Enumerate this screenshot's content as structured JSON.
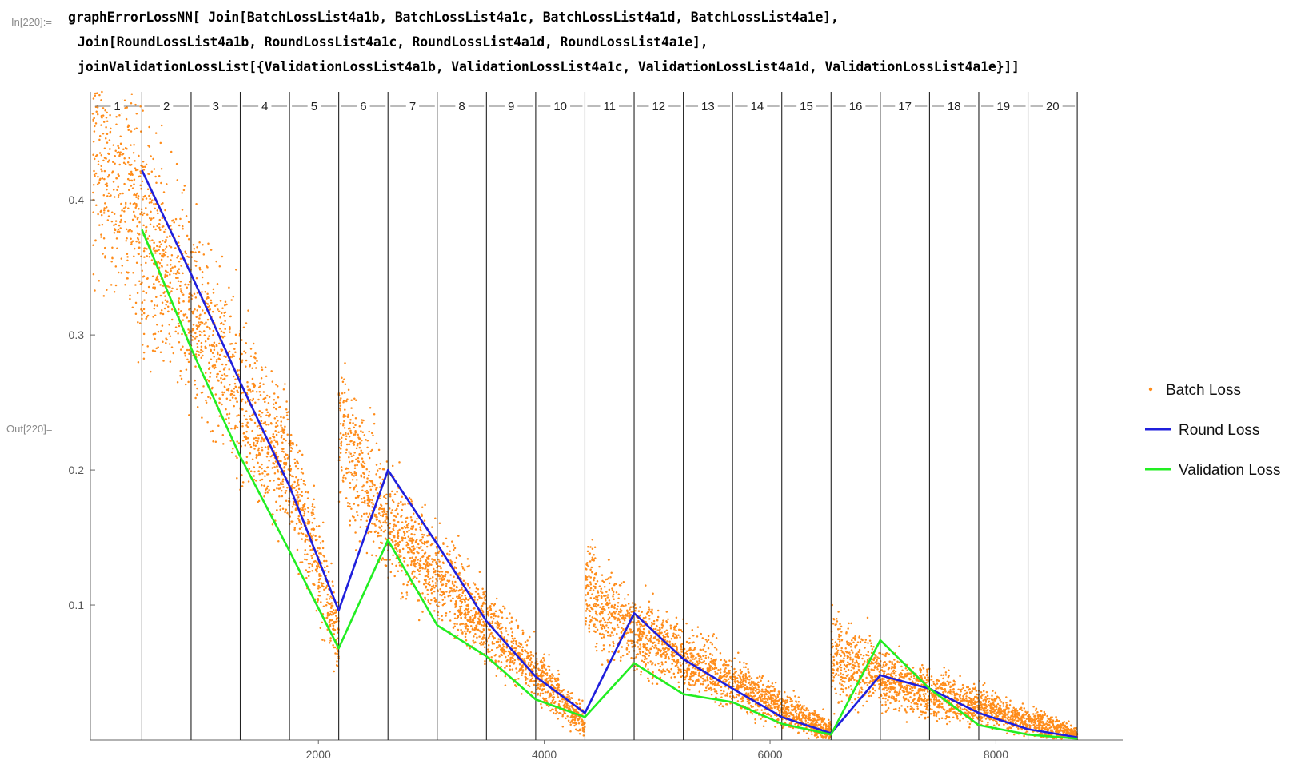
{
  "notebook": {
    "in_label": "In[220]:=",
    "out_label": "Out[220]=",
    "code_lines": [
      "graphErrorLossNN[ Join[BatchLossList4a1b, BatchLossList4a1c, BatchLossList4a1d, BatchLossList4a1e],",
      "Join[RoundLossList4a1b, RoundLossList4a1c, RoundLossList4a1d, RoundLossList4a1e],",
      "joinValidationLossList[{ValidationLossList4a1b, ValidationLossList4a1c, ValidationLossList4a1d, ValidationLossList4a1e}]]"
    ]
  },
  "chart_data": {
    "type": "line",
    "title": "",
    "xlabel": "",
    "ylabel": "",
    "xlim": [
      -20,
      9130
    ],
    "ylim": [
      0,
      0.48
    ],
    "x_ticks": [
      2000,
      4000,
      6000,
      8000
    ],
    "y_ticks": [
      0.1,
      0.2,
      0.3,
      0.4
    ],
    "round_boundaries": [
      436,
      872,
      1308,
      1744,
      2180,
      2616,
      3052,
      3488,
      3924,
      4360,
      4796,
      5232,
      5668,
      6104,
      6540,
      6976,
      7412,
      7848,
      8284,
      8720
    ],
    "round_labels": [
      "1",
      "2",
      "3",
      "4",
      "5",
      "6",
      "7",
      "8",
      "9",
      "10",
      "11",
      "12",
      "13",
      "14",
      "15",
      "16",
      "17",
      "18",
      "19",
      "20"
    ],
    "legend_position": "right",
    "series": [
      {
        "name": "Batch Loss",
        "kind": "scatter",
        "color": "#ff8c1a",
        "segments": [
          {
            "x": [
              0,
              1744
            ],
            "y": [
              0.44,
              0.2
            ],
            "spread": [
              0.08,
              0.045
            ]
          },
          {
            "x": [
              1744,
              2180
            ],
            "y": [
              0.2,
              0.075
            ],
            "spread": [
              0.04,
              0.025
            ]
          },
          {
            "x": [
              2180,
              2616
            ],
            "y": [
              0.23,
              0.16
            ],
            "spread": [
              0.05,
              0.035
            ]
          },
          {
            "x": [
              2616,
              4360
            ],
            "y": [
              0.16,
              0.012
            ],
            "spread": [
              0.035,
              0.012
            ]
          },
          {
            "x": [
              4360,
              4796
            ],
            "y": [
              0.11,
              0.08
            ],
            "spread": [
              0.035,
              0.025
            ]
          },
          {
            "x": [
              4796,
              6540
            ],
            "y": [
              0.08,
              0.006
            ],
            "spread": [
              0.025,
              0.008
            ]
          },
          {
            "x": [
              6540,
              6976
            ],
            "y": [
              0.06,
              0.05
            ],
            "spread": [
              0.03,
              0.02
            ]
          },
          {
            "x": [
              6976,
              8720
            ],
            "y": [
              0.045,
              0.004
            ],
            "spread": [
              0.02,
              0.006
            ]
          }
        ]
      },
      {
        "name": "Round Loss",
        "kind": "line",
        "color": "#1f1fdc",
        "x": [
          436,
          872,
          1308,
          1744,
          2180,
          2616,
          3052,
          3488,
          3924,
          4360,
          4796,
          5232,
          5668,
          6104,
          6540,
          6976,
          7412,
          7848,
          8284,
          8720
        ],
        "y": [
          0.422,
          0.345,
          0.265,
          0.188,
          0.096,
          0.2,
          0.145,
          0.088,
          0.047,
          0.02,
          0.094,
          0.06,
          0.038,
          0.017,
          0.005,
          0.048,
          0.038,
          0.02,
          0.008,
          0.002
        ]
      },
      {
        "name": "Validation Loss",
        "kind": "line",
        "color": "#22ee22",
        "x": [
          436,
          872,
          1308,
          1744,
          2180,
          2616,
          3052,
          3488,
          3924,
          4360,
          4796,
          5232,
          5668,
          6104,
          6540,
          6976,
          7412,
          7848,
          8284,
          8720
        ],
        "y": [
          0.378,
          0.29,
          0.21,
          0.14,
          0.068,
          0.148,
          0.085,
          0.062,
          0.03,
          0.017,
          0.057,
          0.034,
          0.028,
          0.012,
          0.004,
          0.074,
          0.038,
          0.011,
          0.004,
          0.001
        ]
      }
    ]
  }
}
